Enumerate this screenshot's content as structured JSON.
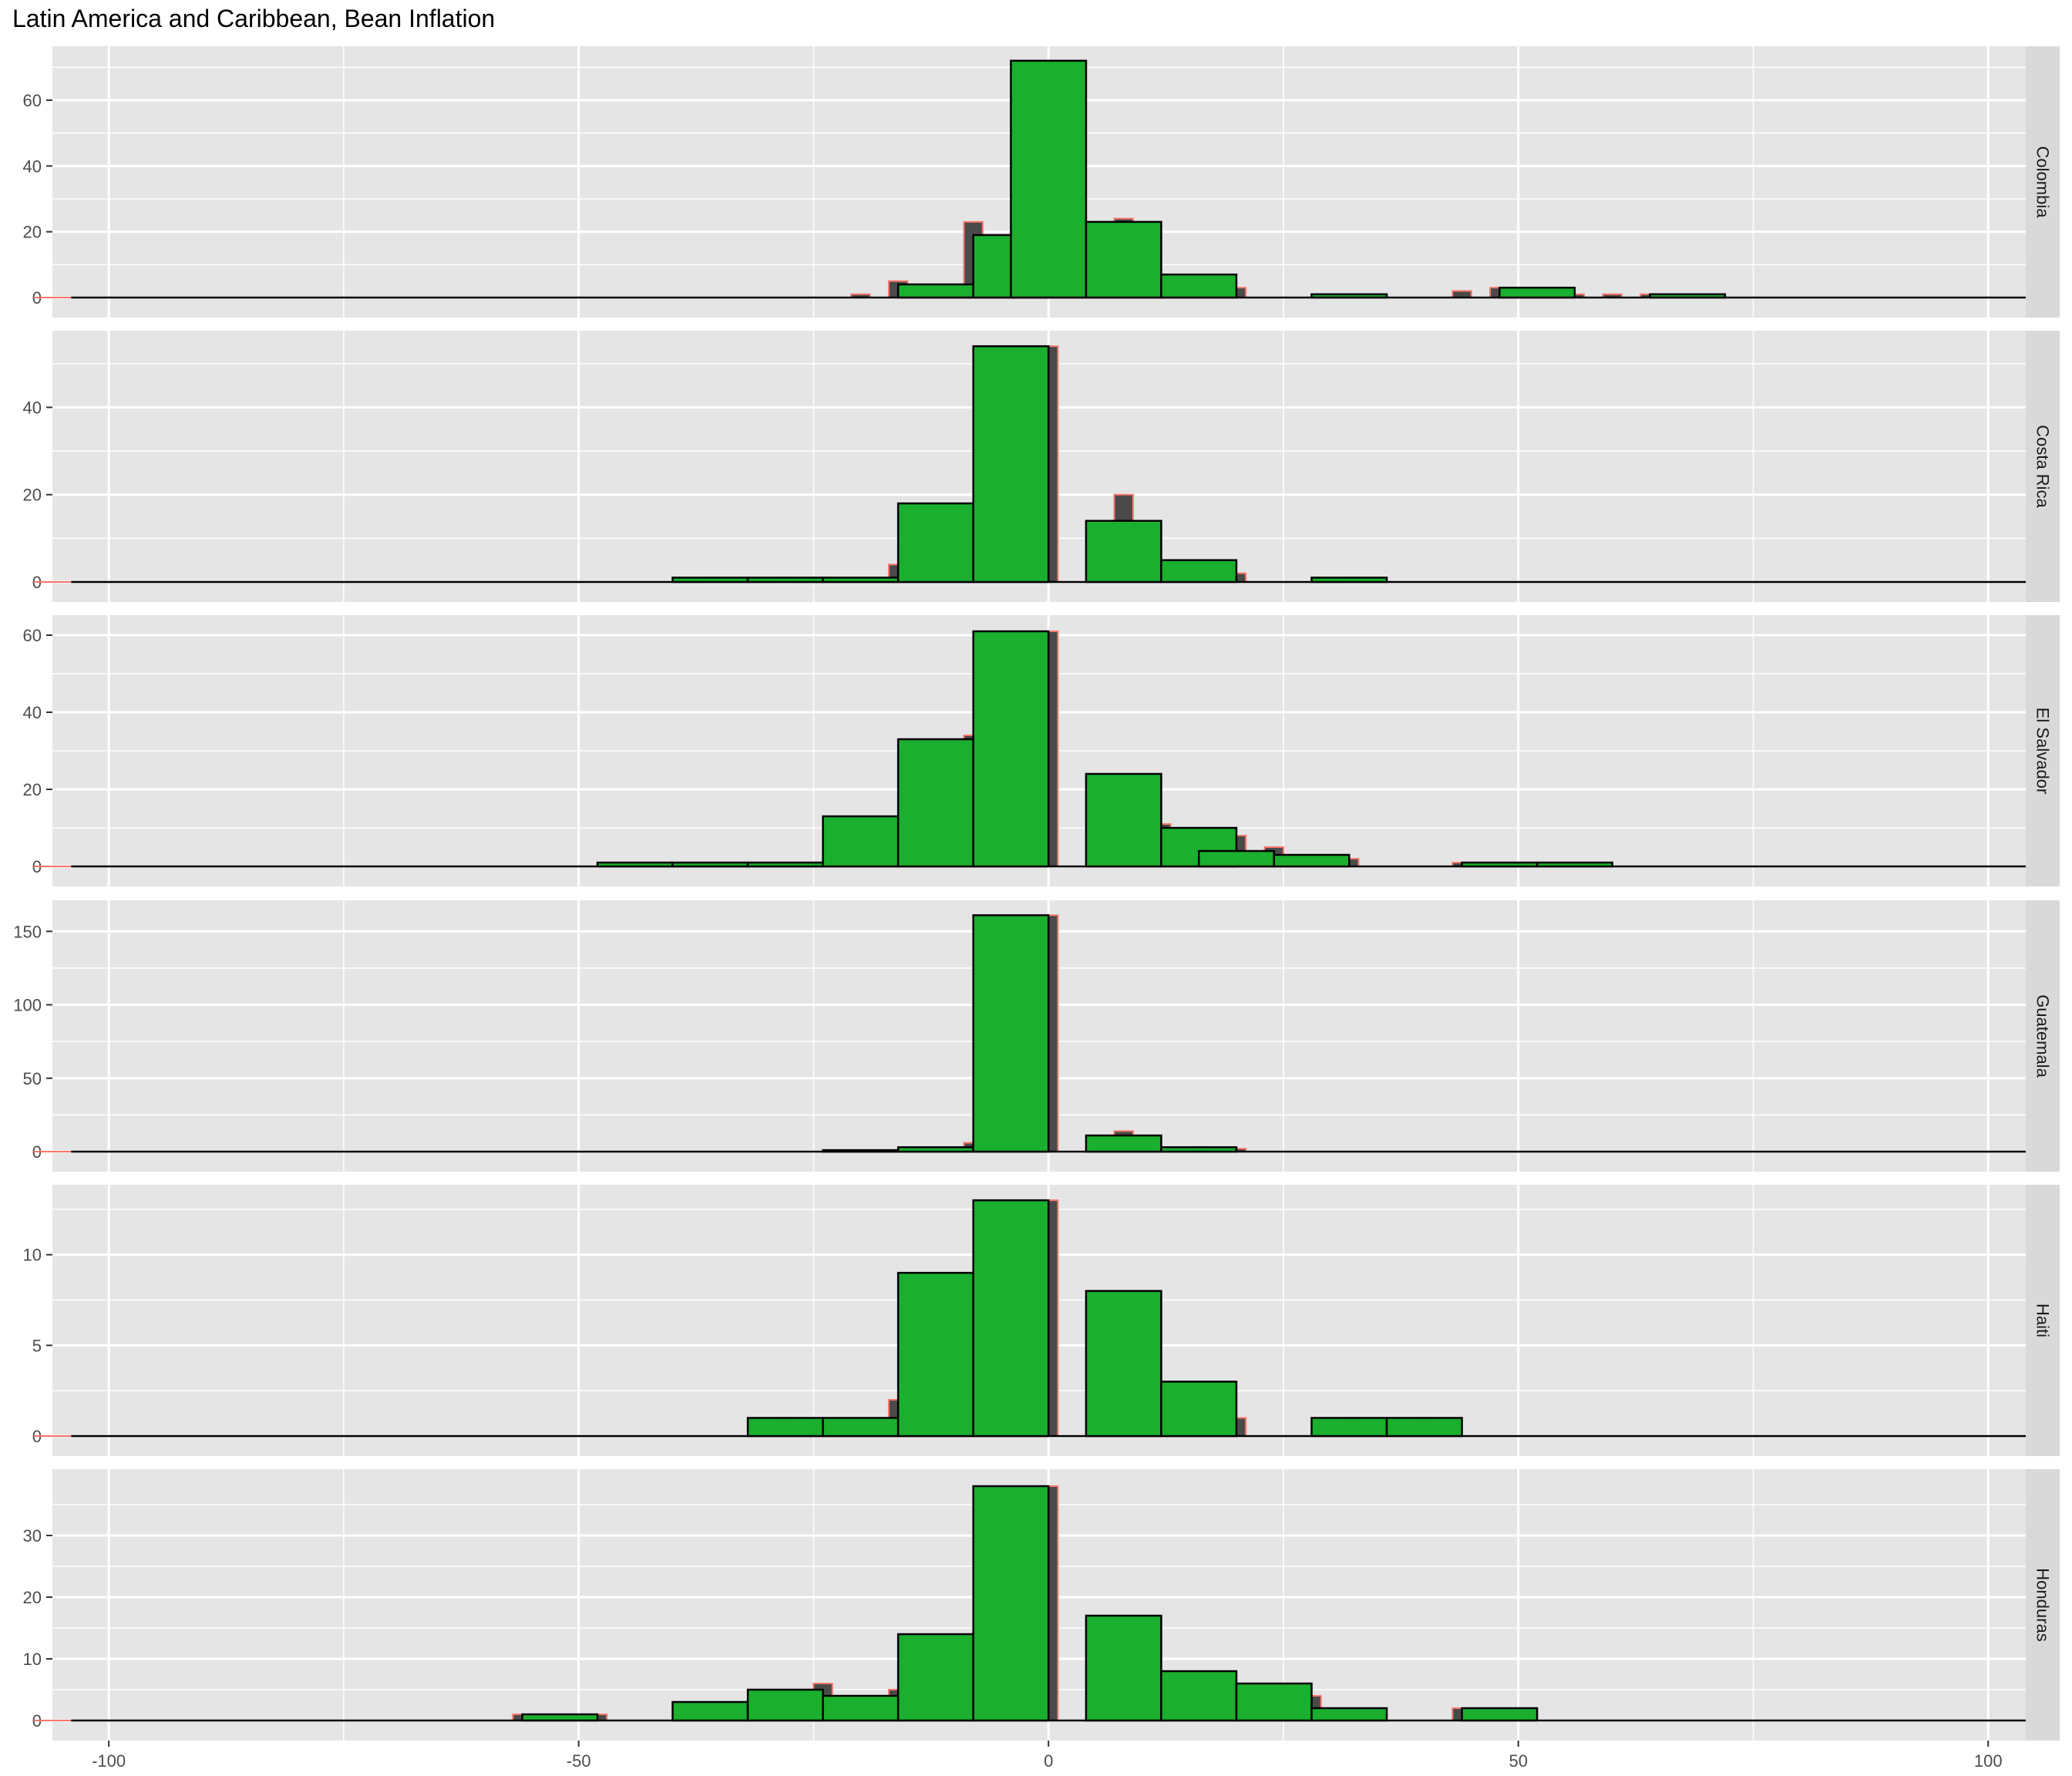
{
  "chart_data": {
    "type": "histogram",
    "title": "Latin America and Caribbean, Bean Inflation",
    "xlabel": "",
    "ylabel": "",
    "xlim": [
      -106,
      104
    ],
    "x_ticks": [
      -100,
      -50,
      0,
      50,
      100
    ],
    "x_tick_labels": [
      "-100",
      "-50",
      "0",
      "50",
      "100"
    ],
    "grid": true,
    "legend": "none",
    "colors": {
      "panel_background": "#e5e5e5",
      "grid": "#ffffff",
      "strip_background": "#d9d9d9",
      "green_fill": "#1aaf2e",
      "green_outline": "#000000",
      "grey_fill": "#4a4a4a",
      "grey_outline": "#f8766d"
    },
    "overlay_bins": [
      -108,
      -100,
      2,
      104
    ],
    "main_bins": [
      -104,
      -96,
      2,
      104
    ],
    "panels": [
      {
        "name": "Colombia",
        "y_ticks": [
          0,
          20,
          40,
          60
        ],
        "ymax": 75,
        "overlay": [
          {
            "x": -20,
            "c": 1
          },
          {
            "x": -16,
            "c": 5
          },
          {
            "x": -8,
            "c": 23
          },
          {
            "x": 0,
            "c": 72
          },
          {
            "x": 8,
            "c": 24
          },
          {
            "x": 16,
            "c": 7
          },
          {
            "x": 20,
            "c": 3
          },
          {
            "x": 32,
            "c": 1
          },
          {
            "x": 44,
            "c": 2
          },
          {
            "x": 48,
            "c": 3
          },
          {
            "x": 56,
            "c": 1
          },
          {
            "x": 60,
            "c": 1
          },
          {
            "x": 64,
            "c": 1
          }
        ],
        "main": [
          {
            "x": -12,
            "c": 4
          },
          {
            "x": -4,
            "c": 19
          },
          {
            "x": 0,
            "c": 72
          },
          {
            "x": 8,
            "c": 23
          },
          {
            "x": 16,
            "c": 7
          },
          {
            "x": 32,
            "c": 1
          },
          {
            "x": 52,
            "c": 3
          },
          {
            "x": 68,
            "c": 1
          }
        ]
      },
      {
        "name": "Costa Rica",
        "y_ticks": [
          0,
          20,
          40
        ],
        "ymax": 56.5,
        "overlay": [
          {
            "x": -36,
            "c": 1
          },
          {
            "x": -28,
            "c": 1
          },
          {
            "x": -24,
            "c": 1
          },
          {
            "x": -16,
            "c": 4
          },
          {
            "x": -8,
            "c": 18
          },
          {
            "x": 0,
            "c": 54
          },
          {
            "x": 8,
            "c": 20
          },
          {
            "x": 16,
            "c": 5
          },
          {
            "x": 20,
            "c": 2
          },
          {
            "x": 32,
            "c": 1
          }
        ],
        "main": [
          {
            "x": -36,
            "c": 1
          },
          {
            "x": -28,
            "c": 1
          },
          {
            "x": -20,
            "c": 1
          },
          {
            "x": -12,
            "c": 18
          },
          {
            "x": -4,
            "c": 54
          },
          {
            "x": 8,
            "c": 14
          },
          {
            "x": 16,
            "c": 5
          },
          {
            "x": 32,
            "c": 1
          }
        ]
      },
      {
        "name": "El Salvador",
        "y_ticks": [
          0,
          20,
          40,
          60
        ],
        "ymax": 64,
        "overlay": [
          {
            "x": -44,
            "c": 1
          },
          {
            "x": -36,
            "c": 1
          },
          {
            "x": -28,
            "c": 1
          },
          {
            "x": -20,
            "c": 4
          },
          {
            "x": -16,
            "c": 13
          },
          {
            "x": -8,
            "c": 34
          },
          {
            "x": 0,
            "c": 61
          },
          {
            "x": 8,
            "c": 24
          },
          {
            "x": 12,
            "c": 11
          },
          {
            "x": 20,
            "c": 8
          },
          {
            "x": 24,
            "c": 5
          },
          {
            "x": 32,
            "c": 2
          },
          {
            "x": 44,
            "c": 1
          },
          {
            "x": 52,
            "c": 1
          },
          {
            "x": 56,
            "c": 1
          }
        ],
        "main": [
          {
            "x": -44,
            "c": 1
          },
          {
            "x": -36,
            "c": 1
          },
          {
            "x": -28,
            "c": 1
          },
          {
            "x": -20,
            "c": 13
          },
          {
            "x": -12,
            "c": 33
          },
          {
            "x": -4,
            "c": 61
          },
          {
            "x": 8,
            "c": 24
          },
          {
            "x": 16,
            "c": 10
          },
          {
            "x": 20,
            "c": 4
          },
          {
            "x": 28,
            "c": 3
          },
          {
            "x": 48,
            "c": 1
          },
          {
            "x": 56,
            "c": 1
          }
        ]
      },
      {
        "name": "Guatemala",
        "y_ticks": [
          0,
          50,
          100,
          150
        ],
        "ymax": 168,
        "overlay": [
          {
            "x": -16,
            "c": 1
          },
          {
            "x": -8,
            "c": 6
          },
          {
            "x": 0,
            "c": 161
          },
          {
            "x": 8,
            "c": 14
          },
          {
            "x": 16,
            "c": 3
          },
          {
            "x": 20,
            "c": 2
          }
        ],
        "main": [
          {
            "x": -20,
            "c": 1
          },
          {
            "x": -12,
            "c": 3
          },
          {
            "x": -4,
            "c": 161
          },
          {
            "x": 8,
            "c": 11
          },
          {
            "x": 16,
            "c": 3
          }
        ]
      },
      {
        "name": "Haiti",
        "y_ticks": [
          0,
          5,
          10
        ],
        "ymax": 13.6,
        "overlay": [
          {
            "x": -28,
            "c": 1
          },
          {
            "x": -16,
            "c": 2
          },
          {
            "x": -8,
            "c": 9
          },
          {
            "x": 0,
            "c": 13
          },
          {
            "x": 8,
            "c": 8
          },
          {
            "x": 16,
            "c": 3
          },
          {
            "x": 20,
            "c": 1
          },
          {
            "x": 32,
            "c": 1
          },
          {
            "x": 40,
            "c": 1
          }
        ],
        "main": [
          {
            "x": -28,
            "c": 1
          },
          {
            "x": -20,
            "c": 1
          },
          {
            "x": -12,
            "c": 9
          },
          {
            "x": -4,
            "c": 13
          },
          {
            "x": 8,
            "c": 8
          },
          {
            "x": 16,
            "c": 3
          },
          {
            "x": 32,
            "c": 1
          },
          {
            "x": 40,
            "c": 1
          }
        ]
      },
      {
        "name": "Honduras",
        "y_ticks": [
          0,
          10,
          20,
          30
        ],
        "ymax": 40,
        "overlay": [
          {
            "x": -56,
            "c": 1
          },
          {
            "x": -48,
            "c": 1
          },
          {
            "x": -36,
            "c": 3
          },
          {
            "x": -24,
            "c": 6
          },
          {
            "x": -16,
            "c": 5
          },
          {
            "x": -8,
            "c": 14
          },
          {
            "x": 0,
            "c": 38
          },
          {
            "x": 8,
            "c": 17
          },
          {
            "x": 16,
            "c": 8
          },
          {
            "x": 28,
            "c": 4
          },
          {
            "x": 32,
            "c": 1
          },
          {
            "x": 44,
            "c": 2
          },
          {
            "x": 48,
            "c": 2
          }
        ],
        "main": [
          {
            "x": -52,
            "c": 1
          },
          {
            "x": -36,
            "c": 3
          },
          {
            "x": -28,
            "c": 5
          },
          {
            "x": -20,
            "c": 4
          },
          {
            "x": -12,
            "c": 14
          },
          {
            "x": -4,
            "c": 38
          },
          {
            "x": 8,
            "c": 17
          },
          {
            "x": 16,
            "c": 8
          },
          {
            "x": 24,
            "c": 6
          },
          {
            "x": 32,
            "c": 2
          },
          {
            "x": 48,
            "c": 2
          }
        ]
      }
    ]
  }
}
